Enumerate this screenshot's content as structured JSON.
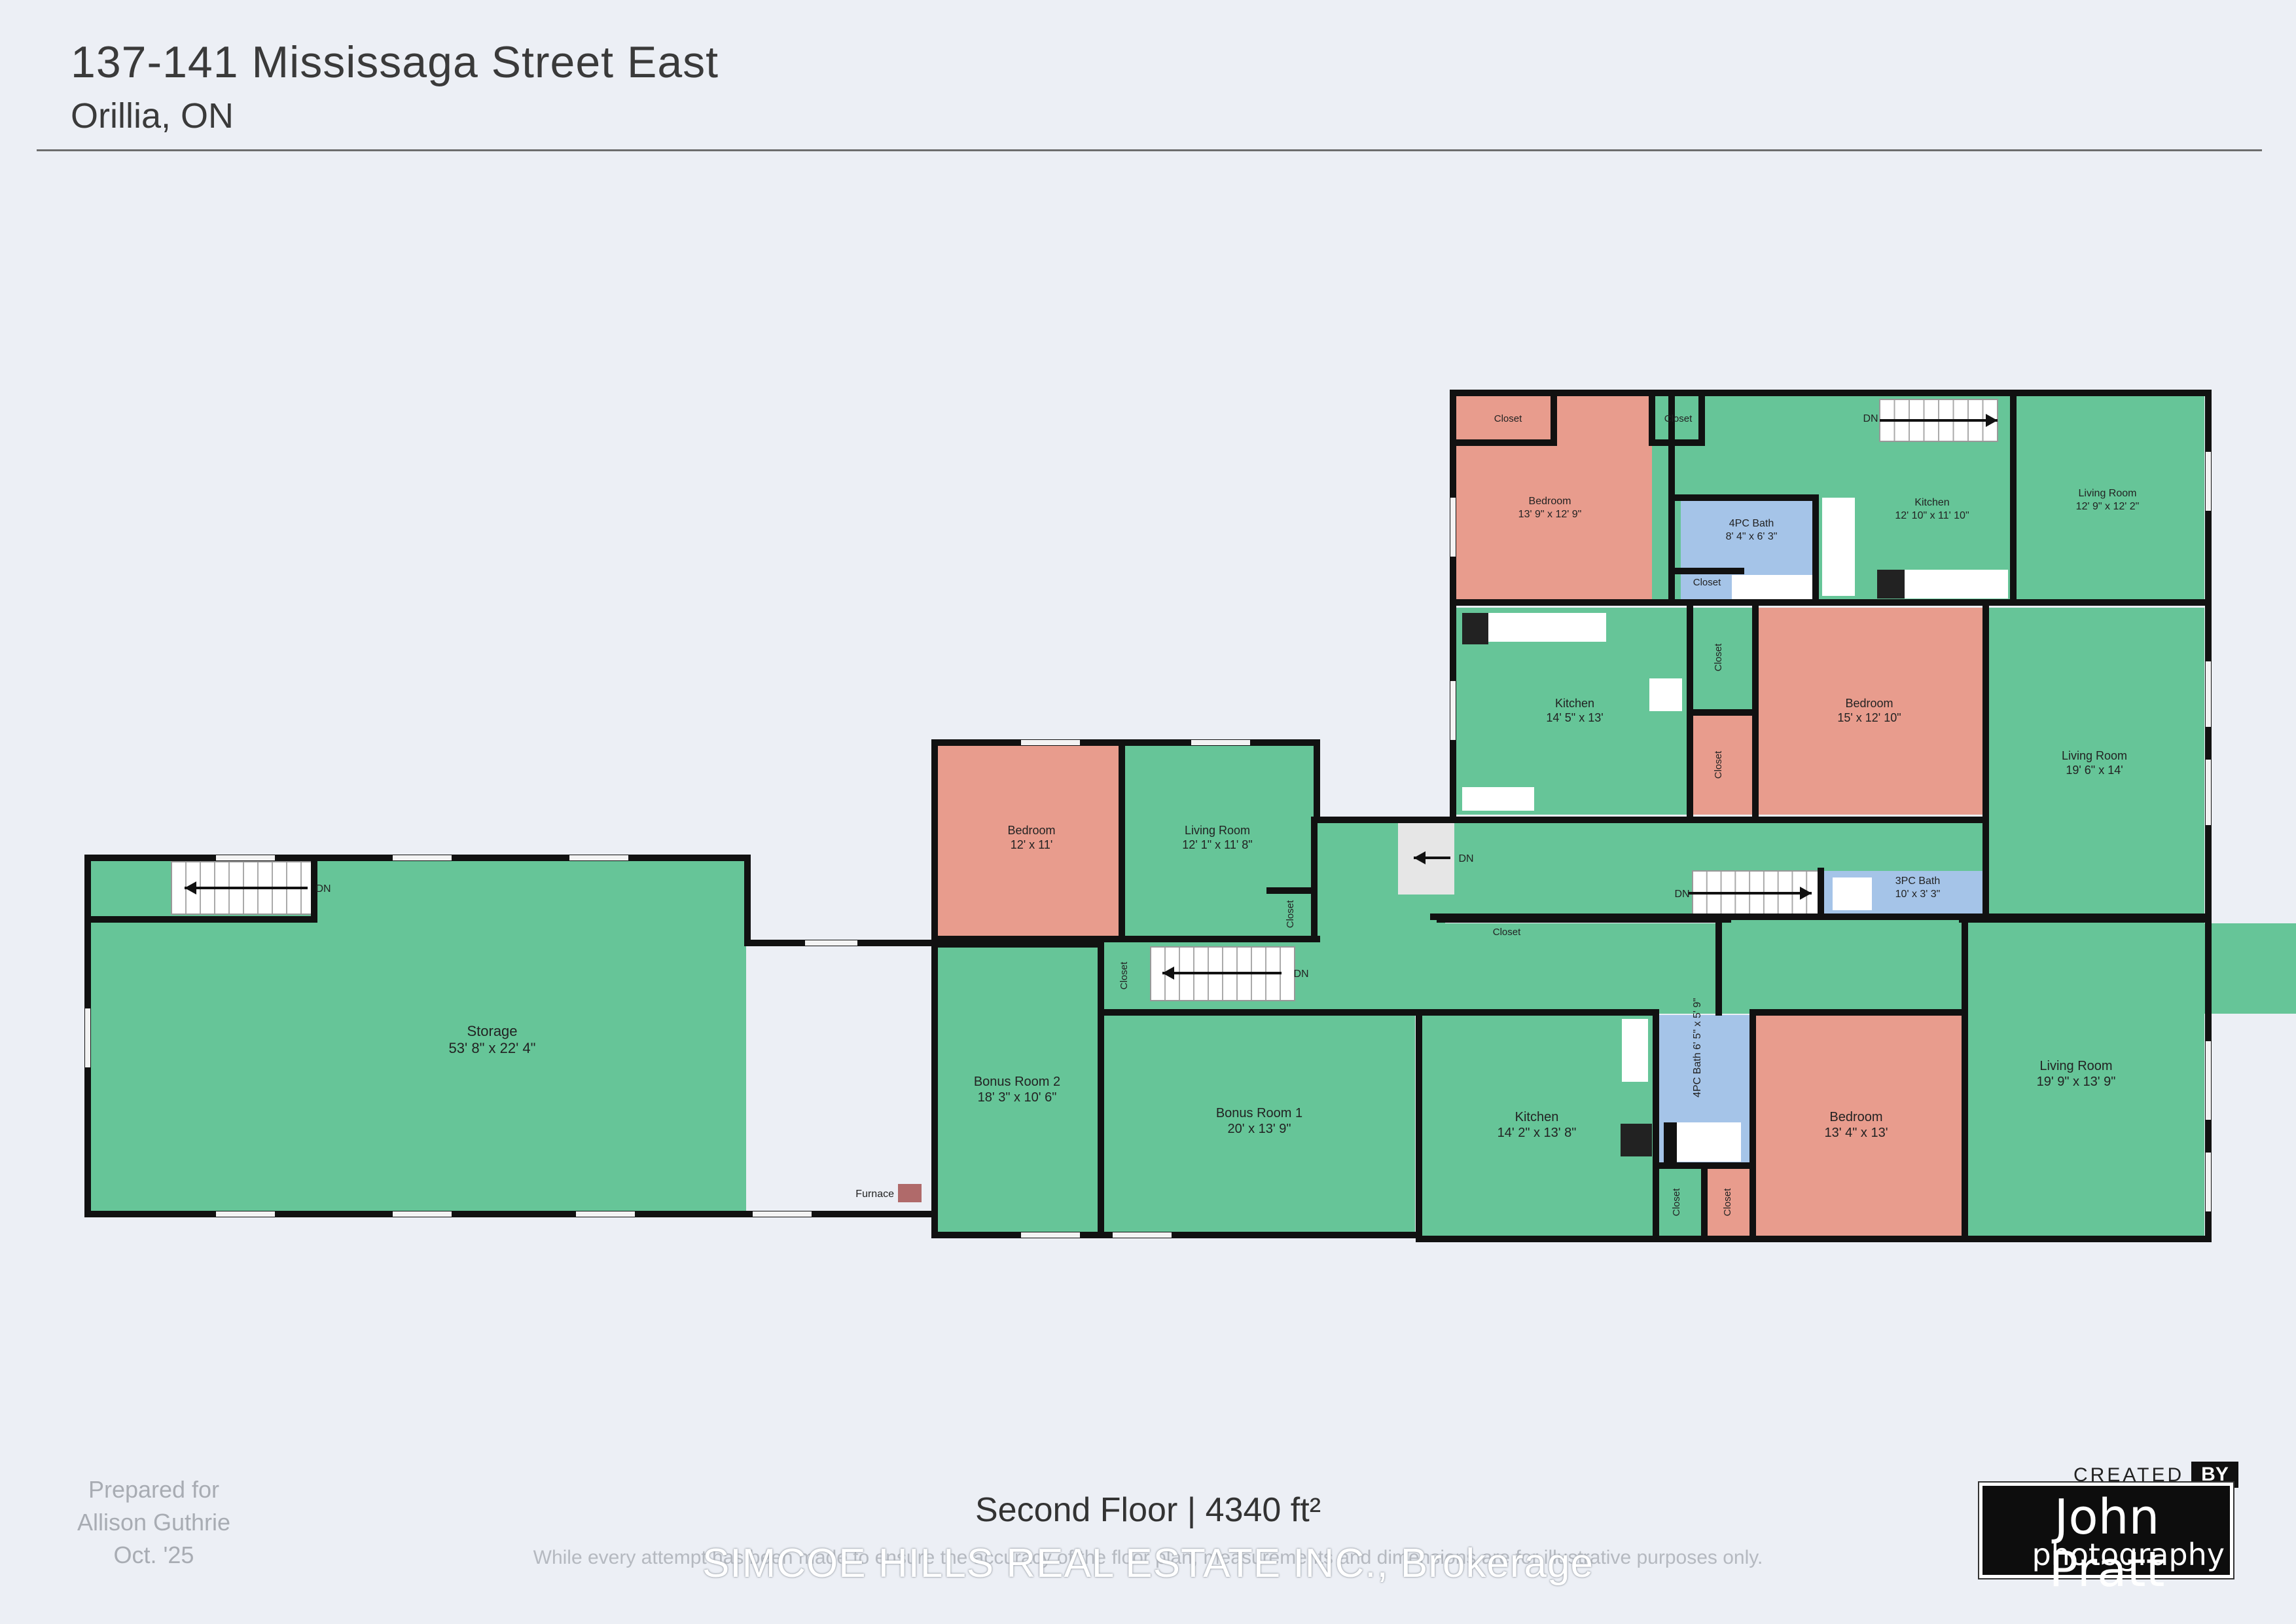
{
  "header": {
    "address": "137-141 Mississaga Street East",
    "city": "Orillia, ON"
  },
  "plan": {
    "colors": {
      "room": "#66c598",
      "bedroom": "#e89c8d",
      "bath": "#a5c4e8",
      "wall": "#111111",
      "stairs": "#ffffff"
    },
    "rooms": [
      {
        "name": "Storage",
        "dims": "53' 8\" x 22' 4\""
      },
      {
        "name": "Bonus Room 2",
        "dims": "18' 3\" x 10' 6\""
      },
      {
        "name": "Bonus Room 1",
        "dims": "20' x 13' 9\""
      },
      {
        "name": "Bedroom",
        "dims": "12' x 11'"
      },
      {
        "name": "Living Room",
        "dims": "12' 1\" x 11' 8\""
      },
      {
        "name": "Kitchen",
        "dims": "14' 2\" x 13' 8\""
      },
      {
        "name": "4PC Bath",
        "dims": "6' 5\" x 5' 9\""
      },
      {
        "name": "Bedroom",
        "dims": "13' 4\" x 13'"
      },
      {
        "name": "Living Room",
        "dims": "19' 9\" x 13' 9\""
      },
      {
        "name": "Kitchen",
        "dims": "14' 5\" x 13'"
      },
      {
        "name": "Bedroom",
        "dims": "15' x 12' 10\""
      },
      {
        "name": "Living Room",
        "dims": "19' 6\" x 14'"
      },
      {
        "name": "3PC Bath",
        "dims": "10' x 3' 3\""
      },
      {
        "name": "Bedroom",
        "dims": "13' 9\" x 12' 9\""
      },
      {
        "name": "4PC Bath",
        "dims": "8' 4\" x 6' 3\""
      },
      {
        "name": "Kitchen",
        "dims": "12' 10\" x 11' 10\""
      },
      {
        "name": "Living Room",
        "dims": "12' 9\" x 12' 2\""
      }
    ],
    "closet_label": "Closet",
    "stair_label": "DN",
    "furnace_label": "Furnace"
  },
  "footer": {
    "prepared_lines": [
      "Prepared for",
      "Allison Guthrie",
      "Oct. '25"
    ],
    "floor_label": "Second Floor | 4340 ft²",
    "disclaimer": "While every attempt has been made to ensure the accuracy of the floor plan, measurements and dimensions are for illustrative purposes only.",
    "brokerage": "SIMCOE HILLS REAL ESTATE INC., Brokerage"
  },
  "logo": {
    "created": "CREATED",
    "by": "BY",
    "name": "John Pratt",
    "sub": "photography"
  }
}
